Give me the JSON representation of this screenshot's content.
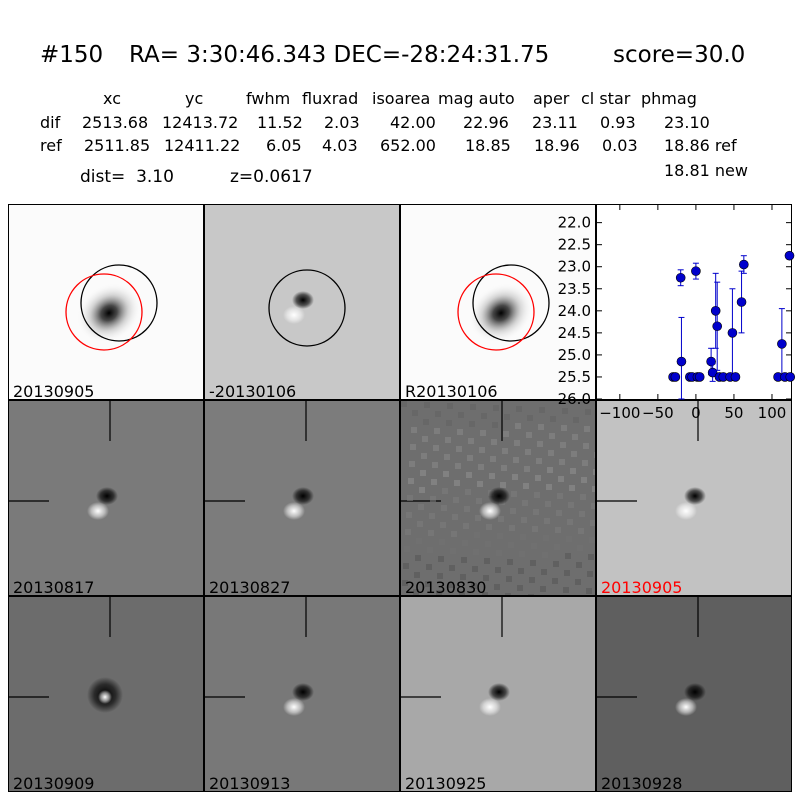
{
  "header": {
    "id": "#150",
    "coords": "RA= 3:30:46.343 DEC=-28:24:31.75",
    "score": "score=30.0",
    "columns": [
      "xc",
      "yc",
      "fwhm",
      "fluxrad",
      "isoarea",
      "mag auto",
      "aper",
      "cl star",
      "phmag"
    ],
    "rows": [
      {
        "label": "dif",
        "values": [
          "2513.68",
          "12413.72",
          "11.52",
          "2.03",
          "42.00",
          "22.96",
          "23.11",
          "0.93",
          "23.10"
        ]
      },
      {
        "label": "ref",
        "values": [
          "2511.85",
          "12411.22",
          "6.05",
          "4.03",
          "652.00",
          "18.85",
          "18.96",
          "0.03",
          "18.86 ref"
        ]
      }
    ],
    "dist": "dist=  3.10",
    "z": "z=0.0617",
    "phmag_new": "18.81 new"
  },
  "panels": [
    {
      "label": "20130905",
      "type": "galaxy",
      "bg": "#fbfbfb",
      "circles": [
        {
          "color": "#000000"
        },
        {
          "color": "#ff0000"
        }
      ]
    },
    {
      "label": "-20130106",
      "type": "diff_light",
      "bg": "#c8c8c8",
      "circles": [
        {
          "color": "#000000"
        }
      ]
    },
    {
      "label": "R20130106",
      "type": "galaxy",
      "bg": "#fbfbfb",
      "circles": [
        {
          "color": "#000000"
        },
        {
          "color": "#ff0000"
        }
      ]
    },
    {
      "label": "20130817",
      "type": "stamp",
      "bg": "#7a7a7a",
      "label_color": "#000000"
    },
    {
      "label": "20130827",
      "type": "stamp",
      "bg": "#7c7c7c",
      "label_color": "#000000"
    },
    {
      "label": "20130830",
      "type": "stamp_noisy",
      "bg": "#6e6e6e",
      "label_color": "#000000"
    },
    {
      "label": "20130905",
      "type": "stamp",
      "bg": "#c2c2c2",
      "label_color": "#ff0000"
    },
    {
      "label": "20130909",
      "type": "stamp_ring",
      "bg": "#6c6c6c",
      "label_color": "#000000"
    },
    {
      "label": "20130913",
      "type": "stamp",
      "bg": "#787878",
      "label_color": "#000000"
    },
    {
      "label": "20130925",
      "type": "stamp",
      "bg": "#a8a8a8",
      "label_color": "#000000"
    },
    {
      "label": "20130928",
      "type": "stamp",
      "bg": "#5f5f5f",
      "label_color": "#000000"
    }
  ],
  "chart_data": {
    "type": "scatter",
    "xlim": [
      -130,
      125
    ],
    "ylim": [
      26.0,
      21.6
    ],
    "y_inverted": true,
    "xticks": [
      -100,
      -50,
      0,
      50,
      100
    ],
    "xtick_labels": [
      "−100",
      "−50",
      "0",
      "50",
      "100"
    ],
    "yticks": [
      22.0,
      22.5,
      23.0,
      23.5,
      24.0,
      24.5,
      25.0,
      25.5,
      26.0
    ],
    "ytick_labels": [
      "22.0",
      "22.5",
      "23.0",
      "23.5",
      "24.0",
      "24.5",
      "25.0",
      "25.5",
      "26.0"
    ],
    "color": "#0000cc",
    "points": [
      {
        "x": -30,
        "y": 25.5,
        "err": 0.05
      },
      {
        "x": -27,
        "y": 25.5,
        "err": 0.05
      },
      {
        "x": -20,
        "y": 23.25,
        "err": 0.18
      },
      {
        "x": -19,
        "y": 25.15,
        "err": 1.0
      },
      {
        "x": -8,
        "y": 25.5,
        "err": 0.05
      },
      {
        "x": -5,
        "y": 25.5,
        "err": 0.05
      },
      {
        "x": 0,
        "y": 23.1,
        "err": 0.18
      },
      {
        "x": 2,
        "y": 25.5,
        "err": 0.05
      },
      {
        "x": 5,
        "y": 25.5,
        "err": 0.05
      },
      {
        "x": 20,
        "y": 25.15,
        "err": 0.3
      },
      {
        "x": 22,
        "y": 25.4,
        "err": 0.2
      },
      {
        "x": 26,
        "y": 24.0,
        "err": 0.85
      },
      {
        "x": 28,
        "y": 24.35,
        "err": 1.0
      },
      {
        "x": 31,
        "y": 25.5,
        "err": 0.05
      },
      {
        "x": 36,
        "y": 25.5,
        "err": 0.05
      },
      {
        "x": 45,
        "y": 25.5,
        "err": 0.05
      },
      {
        "x": 48,
        "y": 24.5,
        "err": 1.0
      },
      {
        "x": 52,
        "y": 25.5,
        "err": 0.05
      },
      {
        "x": 60,
        "y": 23.8,
        "err": 0.7
      },
      {
        "x": 63,
        "y": 22.95,
        "err": 0.2
      },
      {
        "x": 108,
        "y": 25.5,
        "err": 0.05
      },
      {
        "x": 113,
        "y": 24.75,
        "err": 0.8
      },
      {
        "x": 117,
        "y": 25.5,
        "err": 0.05
      },
      {
        "x": 123,
        "y": 22.75,
        "err": 0.05
      },
      {
        "x": 124,
        "y": 25.5,
        "err": 0.05
      }
    ]
  }
}
